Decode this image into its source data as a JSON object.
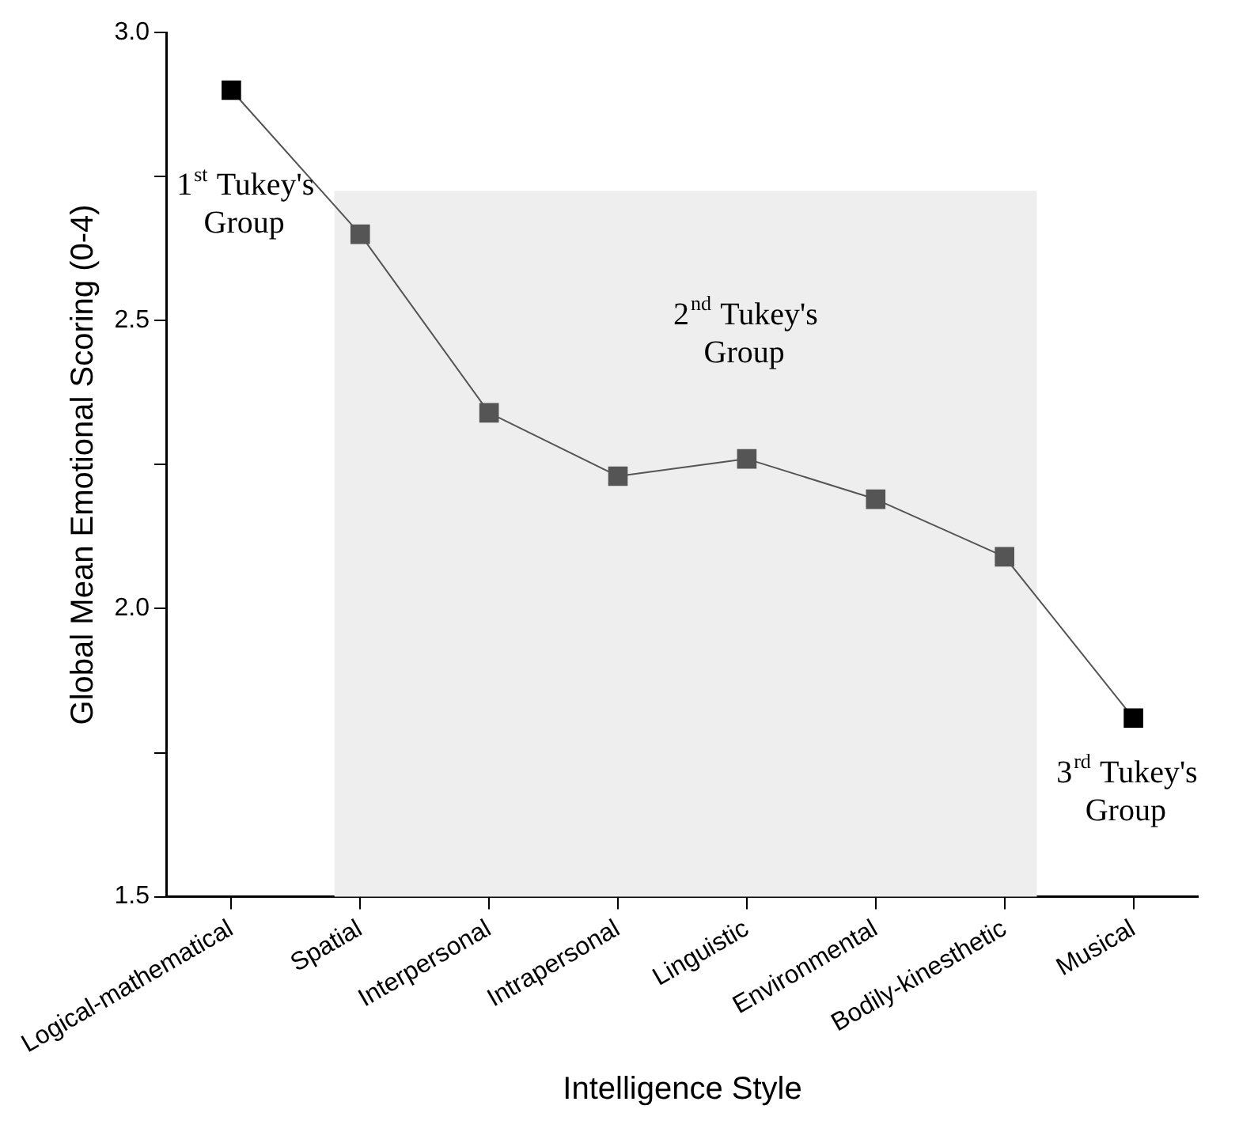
{
  "chart_data": {
    "type": "line",
    "xlabel": "Intelligence Style",
    "ylabel": "Global Mean Emotional Scoring (0-4)",
    "categories": [
      "Logical-mathematical",
      "Spatial",
      "Interpersonal",
      "Intrapersonal",
      "Linguistic",
      "Environmental",
      "Bodily-kinesthetic",
      "Musical"
    ],
    "series": [
      {
        "color": "#555555",
        "colors": [
          "#000000",
          "#555555",
          "#555555",
          "#555555",
          "#555555",
          "#555555",
          "#555555",
          "#000000"
        ],
        "values": [
          2.9,
          2.65,
          2.34,
          2.23,
          2.26,
          2.19,
          2.09,
          1.81
        ]
      }
    ],
    "ylim": [
      1.5,
      3.0
    ],
    "yticks": [
      1.5,
      {
        "value": 1.75,
        "label": null
      },
      {
        "value": 2,
        "label": "2.0"
      },
      {
        "value": 2.25,
        "label": null
      },
      2.5,
      {
        "value": 2.75,
        "label": null
      },
      {
        "value": 3,
        "label": "3.0"
      }
    ],
    "bands": [
      {
        "axis": "x",
        "from": "Spatial",
        "to": "Bodily-kinesthetic",
        "color": "#eeeeee"
      }
    ],
    "annotations": [
      "1$^{st}$ Tukey's Group",
      "2$^{nd}$ Tukey's Group",
      "3$^{rd}$ Tukey's Group"
    ],
    "grid": false,
    "legend": false,
    "marker": "square",
    "line_style": "solid"
  }
}
